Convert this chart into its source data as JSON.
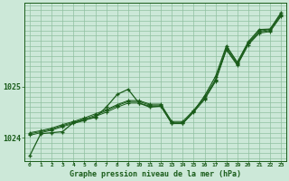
{
  "title": "Graphe pression niveau de la mer (hPa)",
  "background_color": "#cce8d8",
  "grid_color": "#90c0a0",
  "line_color": "#1a5c1a",
  "xlim": [
    -0.5,
    23.5
  ],
  "ylim": [
    1023.55,
    1026.65
  ],
  "yticks": [
    1024,
    1025
  ],
  "xtick_labels": [
    "0",
    "1",
    "2",
    "3",
    "4",
    "5",
    "6",
    "7",
    "8",
    "9",
    "10",
    "11",
    "12",
    "13",
    "14",
    "15",
    "16",
    "17",
    "18",
    "19",
    "20",
    "21",
    "22",
    "23"
  ],
  "series_volatile": [
    1023.65,
    1024.08,
    1024.1,
    1024.12,
    1024.3,
    1024.35,
    1024.4,
    1024.6,
    1024.85,
    1024.95,
    1024.68,
    1024.6,
    1024.62,
    1024.28,
    1024.28,
    1024.52,
    1024.82,
    1025.2,
    1025.8,
    1025.48,
    1025.88,
    1026.12,
    1026.13,
    1026.45
  ],
  "series_ref": [
    [
      1024.05,
      1024.1,
      1024.15,
      1024.22,
      1024.28,
      1024.34,
      1024.42,
      1024.5,
      1024.6,
      1024.68,
      1024.68,
      1024.62,
      1024.62,
      1024.28,
      1024.28,
      1024.5,
      1024.75,
      1025.1,
      1025.72,
      1025.42,
      1025.82,
      1026.05,
      1026.08,
      1026.38
    ],
    [
      1024.08,
      1024.12,
      1024.17,
      1024.24,
      1024.3,
      1024.37,
      1024.44,
      1024.53,
      1024.63,
      1024.71,
      1024.71,
      1024.64,
      1024.64,
      1024.3,
      1024.3,
      1024.52,
      1024.77,
      1025.12,
      1025.74,
      1025.44,
      1025.84,
      1026.07,
      1026.1,
      1026.4
    ],
    [
      1024.1,
      1024.14,
      1024.19,
      1024.26,
      1024.32,
      1024.39,
      1024.47,
      1024.55,
      1024.65,
      1024.73,
      1024.73,
      1024.66,
      1024.66,
      1024.32,
      1024.32,
      1024.54,
      1024.79,
      1025.14,
      1025.76,
      1025.46,
      1025.86,
      1026.09,
      1026.12,
      1026.42
    ]
  ]
}
